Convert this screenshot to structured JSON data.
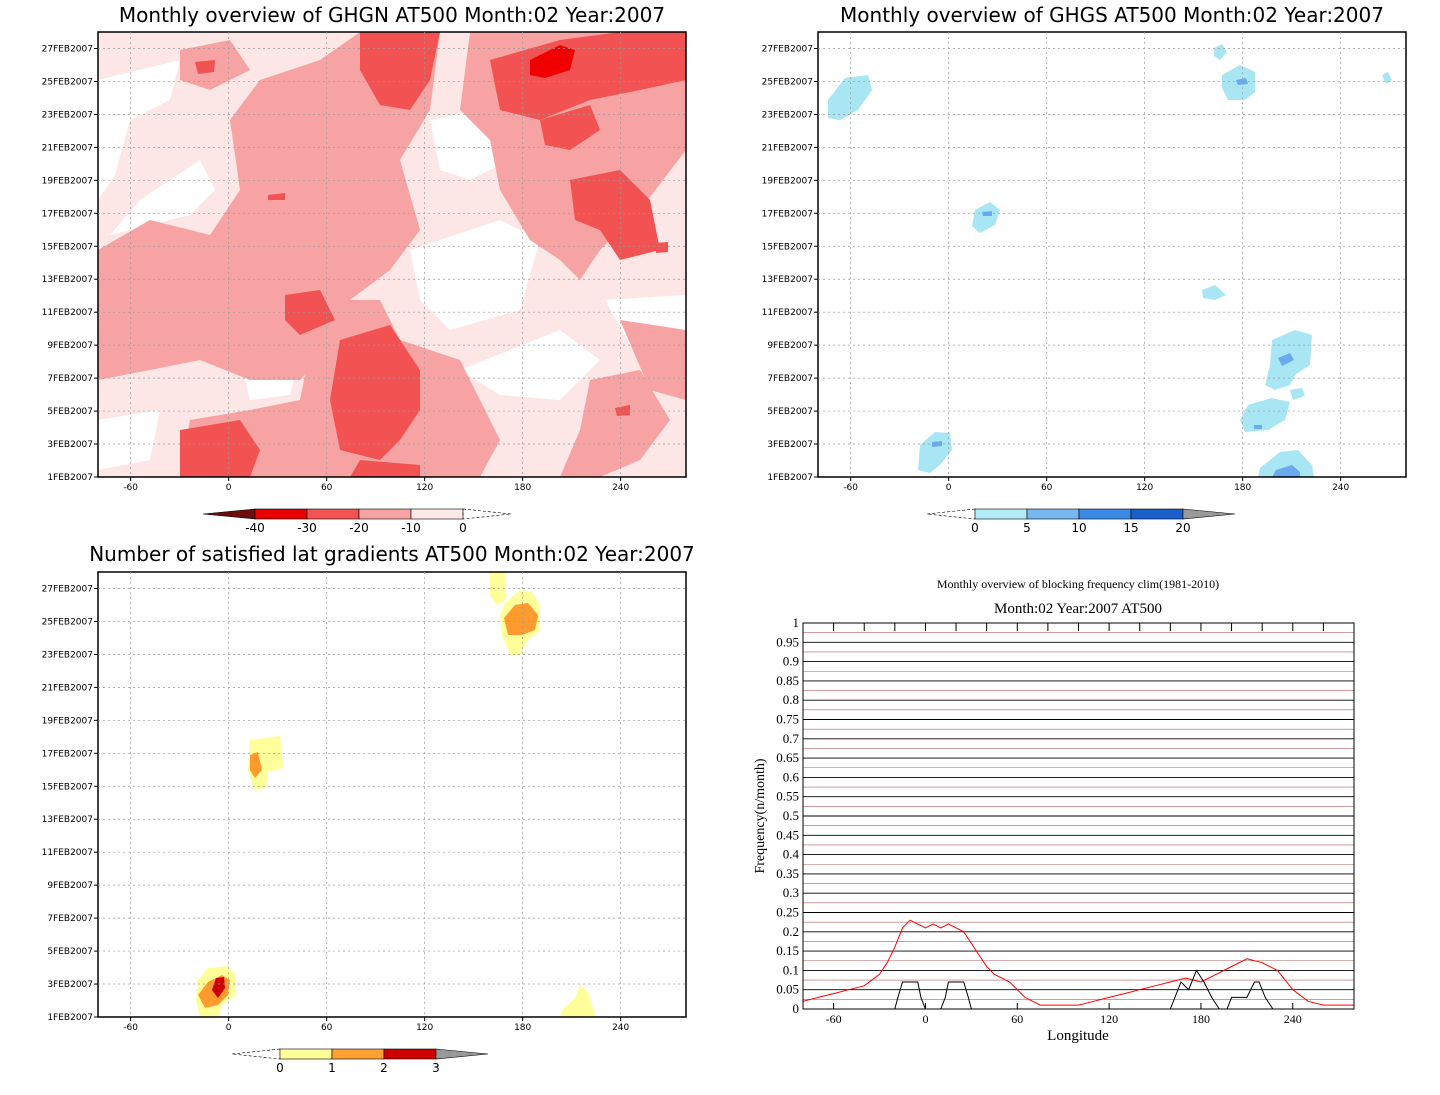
{
  "chart_data": [
    {
      "type": "heatmap",
      "title": "Monthly overview of GHGN AT500 Month:02 Year:2007",
      "x_ticks": [
        "-60",
        "0",
        "60",
        "120",
        "180",
        "240"
      ],
      "x_tick_values": [
        -60,
        0,
        60,
        120,
        180,
        240
      ],
      "y_ticks": [
        "1FEB2007",
        "3FEB2007",
        "5FEB2007",
        "7FEB2007",
        "9FEB2007",
        "11FEB2007",
        "13FEB2007",
        "15FEB2007",
        "17FEB2007",
        "19FEB2007",
        "21FEB2007",
        "23FEB2007",
        "25FEB2007",
        "27FEB2007"
      ],
      "xlim": [
        -80,
        280
      ],
      "colorbar": {
        "labels": [
          "-40",
          "-30",
          "-20",
          "-10",
          "0"
        ],
        "colors": [
          "#6b0d0d",
          "#e80000",
          "#f25252",
          "#f7a3a3",
          "#fde8e8"
        ]
      },
      "colors": {
        "strongest": "#f00000",
        "strong": "#f25252",
        "medium": "#f7a3a3",
        "weak": "#fde6e6"
      },
      "grid": true
    },
    {
      "type": "heatmap",
      "title": "Monthly overview of GHGS AT500 Month:02 Year:2007",
      "x_ticks": [
        "-60",
        "0",
        "60",
        "120",
        "180",
        "240"
      ],
      "x_tick_values": [
        -60,
        0,
        60,
        120,
        180,
        240
      ],
      "y_ticks": [
        "1FEB2007",
        "3FEB2007",
        "5FEB2007",
        "7FEB2007",
        "9FEB2007",
        "11FEB2007",
        "13FEB2007",
        "15FEB2007",
        "17FEB2007",
        "19FEB2007",
        "21FEB2007",
        "23FEB2007",
        "25FEB2007",
        "27FEB2007"
      ],
      "xlim": [
        -80,
        280
      ],
      "colorbar": {
        "labels": [
          "0",
          "5",
          "10",
          "15",
          "20"
        ],
        "colors": [
          "#b3ecf7",
          "#78b8f0",
          "#3c8ae8",
          "#1a5fcc",
          "#999999"
        ]
      },
      "colors": {
        "weak": "#a8e6f4",
        "medium": "#6aaaee"
      },
      "grid": true
    },
    {
      "type": "heatmap",
      "title": "Number of satisfied lat gradients AT500 Month:02 Year:2007",
      "x_ticks": [
        "-60",
        "0",
        "60",
        "120",
        "180",
        "240"
      ],
      "x_tick_values": [
        -60,
        0,
        60,
        120,
        180,
        240
      ],
      "y_ticks": [
        "1FEB2007",
        "3FEB2007",
        "5FEB2007",
        "7FEB2007",
        "9FEB2007",
        "11FEB2007",
        "13FEB2007",
        "15FEB2007",
        "17FEB2007",
        "19FEB2007",
        "21FEB2007",
        "23FEB2007",
        "25FEB2007",
        "27FEB2007"
      ],
      "xlim": [
        -80,
        280
      ],
      "colorbar": {
        "labels": [
          "0",
          "1",
          "2",
          "3"
        ],
        "colors": [
          "#ffff99",
          "#ffa033",
          "#cc0000",
          "#999999"
        ]
      },
      "colors": {
        "one": "#ffff99",
        "two": "#ff9a2e",
        "three": "#cc0000"
      },
      "grid": true
    },
    {
      "type": "line",
      "title": "Monthly overview of blocking frequency clim(1981-2010)",
      "subtitle": "Month:02 Year:2007  AT500",
      "xlabel": "Longitude",
      "ylabel": "Frequency(n/month)",
      "xlim": [
        -80,
        280
      ],
      "ylim": [
        0,
        1
      ],
      "x_ticks": [
        "-60",
        "0",
        "60",
        "120",
        "180",
        "240"
      ],
      "x_tick_values": [
        -60,
        0,
        60,
        120,
        180,
        240
      ],
      "y_ticks": [
        "0",
        "0.05",
        "0.1",
        "0.15",
        "0.2",
        "0.25",
        "0.3",
        "0.35",
        "0.4",
        "0.45",
        "0.5",
        "0.55",
        "0.6",
        "0.65",
        "0.7",
        "0.75",
        "0.8",
        "0.85",
        "0.9",
        "0.95",
        "1"
      ],
      "series": [
        {
          "color": "#ff0000",
          "x": [
            -80,
            -70,
            -60,
            -50,
            -40,
            -30,
            -25,
            -20,
            -15,
            -10,
            -5,
            0,
            5,
            10,
            15,
            20,
            25,
            30,
            35,
            40,
            45,
            50,
            55,
            60,
            65,
            70,
            75,
            80,
            90,
            100,
            110,
            120,
            130,
            140,
            150,
            160,
            170,
            180,
            190,
            200,
            210,
            220,
            230,
            240,
            250,
            260,
            270,
            280
          ],
          "y": [
            0.02,
            0.03,
            0.04,
            0.05,
            0.06,
            0.09,
            0.12,
            0.16,
            0.21,
            0.23,
            0.22,
            0.21,
            0.22,
            0.21,
            0.22,
            0.21,
            0.2,
            0.17,
            0.14,
            0.11,
            0.09,
            0.08,
            0.07,
            0.05,
            0.03,
            0.02,
            0.01,
            0.01,
            0.01,
            0.01,
            0.02,
            0.03,
            0.04,
            0.05,
            0.06,
            0.07,
            0.08,
            0.07,
            0.09,
            0.11,
            0.13,
            0.12,
            0.1,
            0.05,
            0.02,
            0.01,
            0.01,
            0.01
          ]
        },
        {
          "color": "#000000",
          "x": [
            -80,
            -20,
            -18,
            -15,
            -10,
            -5,
            -3,
            0,
            5,
            10,
            13,
            15,
            20,
            25,
            28,
            30,
            35,
            160,
            163,
            167,
            172,
            177,
            182,
            187,
            192,
            197,
            200,
            205,
            210,
            215,
            218,
            222,
            227,
            280
          ],
          "y": [
            0,
            0,
            0.03,
            0.07,
            0.07,
            0.07,
            0.03,
            0,
            0,
            0,
            0.03,
            0.07,
            0.07,
            0.07,
            0.03,
            0,
            0,
            0,
            0.03,
            0.07,
            0.05,
            0.1,
            0.07,
            0.03,
            0,
            0,
            0.03,
            0.03,
            0.03,
            0.07,
            0.07,
            0.03,
            0,
            0
          ]
        }
      ],
      "colors": {
        "line": "#ff0000",
        "black": "#000000",
        "gridline": "#b06060"
      },
      "grid": true
    }
  ]
}
